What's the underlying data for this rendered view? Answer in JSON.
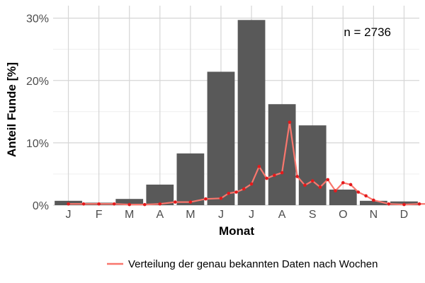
{
  "chart_data": {
    "type": "bar",
    "title": "",
    "xlabel": "Monat",
    "ylabel": "Anteil Funde [%]",
    "categories": [
      "J",
      "F",
      "M",
      "A",
      "M",
      "J",
      "J",
      "A",
      "S",
      "O",
      "N",
      "D"
    ],
    "values": [
      0.7,
      0.4,
      1.0,
      3.3,
      8.3,
      21.4,
      29.7,
      16.2,
      12.8,
      2.5,
      0.7,
      0.6
    ],
    "ylim": [
      0,
      32
    ],
    "yticks": [
      0,
      10,
      20,
      30
    ],
    "ytick_labels": [
      "0%",
      "10%",
      "20%",
      "30%"
    ],
    "grid": true,
    "bar_color": "#595959",
    "annotation": "n = 2736",
    "line_series": {
      "name": "Verteilung der genau bekannten Daten nach Wochen",
      "color": "#F8766D",
      "point_color": "#E41A1C",
      "x_month_position": [
        0.5,
        1.0,
        1.5,
        2.0,
        2.5,
        3.0,
        3.5,
        4.0,
        4.5,
        5.0,
        5.5,
        5.75,
        6.0,
        6.25,
        6.5,
        6.75,
        7.0,
        7.25,
        7.5,
        7.75,
        8.0,
        8.25,
        8.5,
        8.75,
        9.0,
        9.25,
        9.5,
        9.75,
        10.0,
        10.25,
        10.5,
        11.0,
        11.5,
        12.0,
        12.5
      ],
      "values": [
        0.2,
        0.2,
        0.2,
        0.2,
        0.1,
        0.1,
        0.2,
        0.5,
        0.5,
        1.0,
        1.1,
        1.9,
        2.1,
        2.6,
        3.4,
        6.2,
        4.3,
        4.8,
        5.2,
        13.3,
        4.6,
        3.2,
        3.9,
        2.9,
        4.1,
        2.3,
        3.6,
        3.3,
        2.1,
        1.5,
        0.8,
        0.2,
        0.1,
        0.2,
        0.2
      ]
    },
    "legend": {
      "position": "bottom-right",
      "label": "Verteilung der genau bekannten Daten nach Wochen"
    }
  }
}
